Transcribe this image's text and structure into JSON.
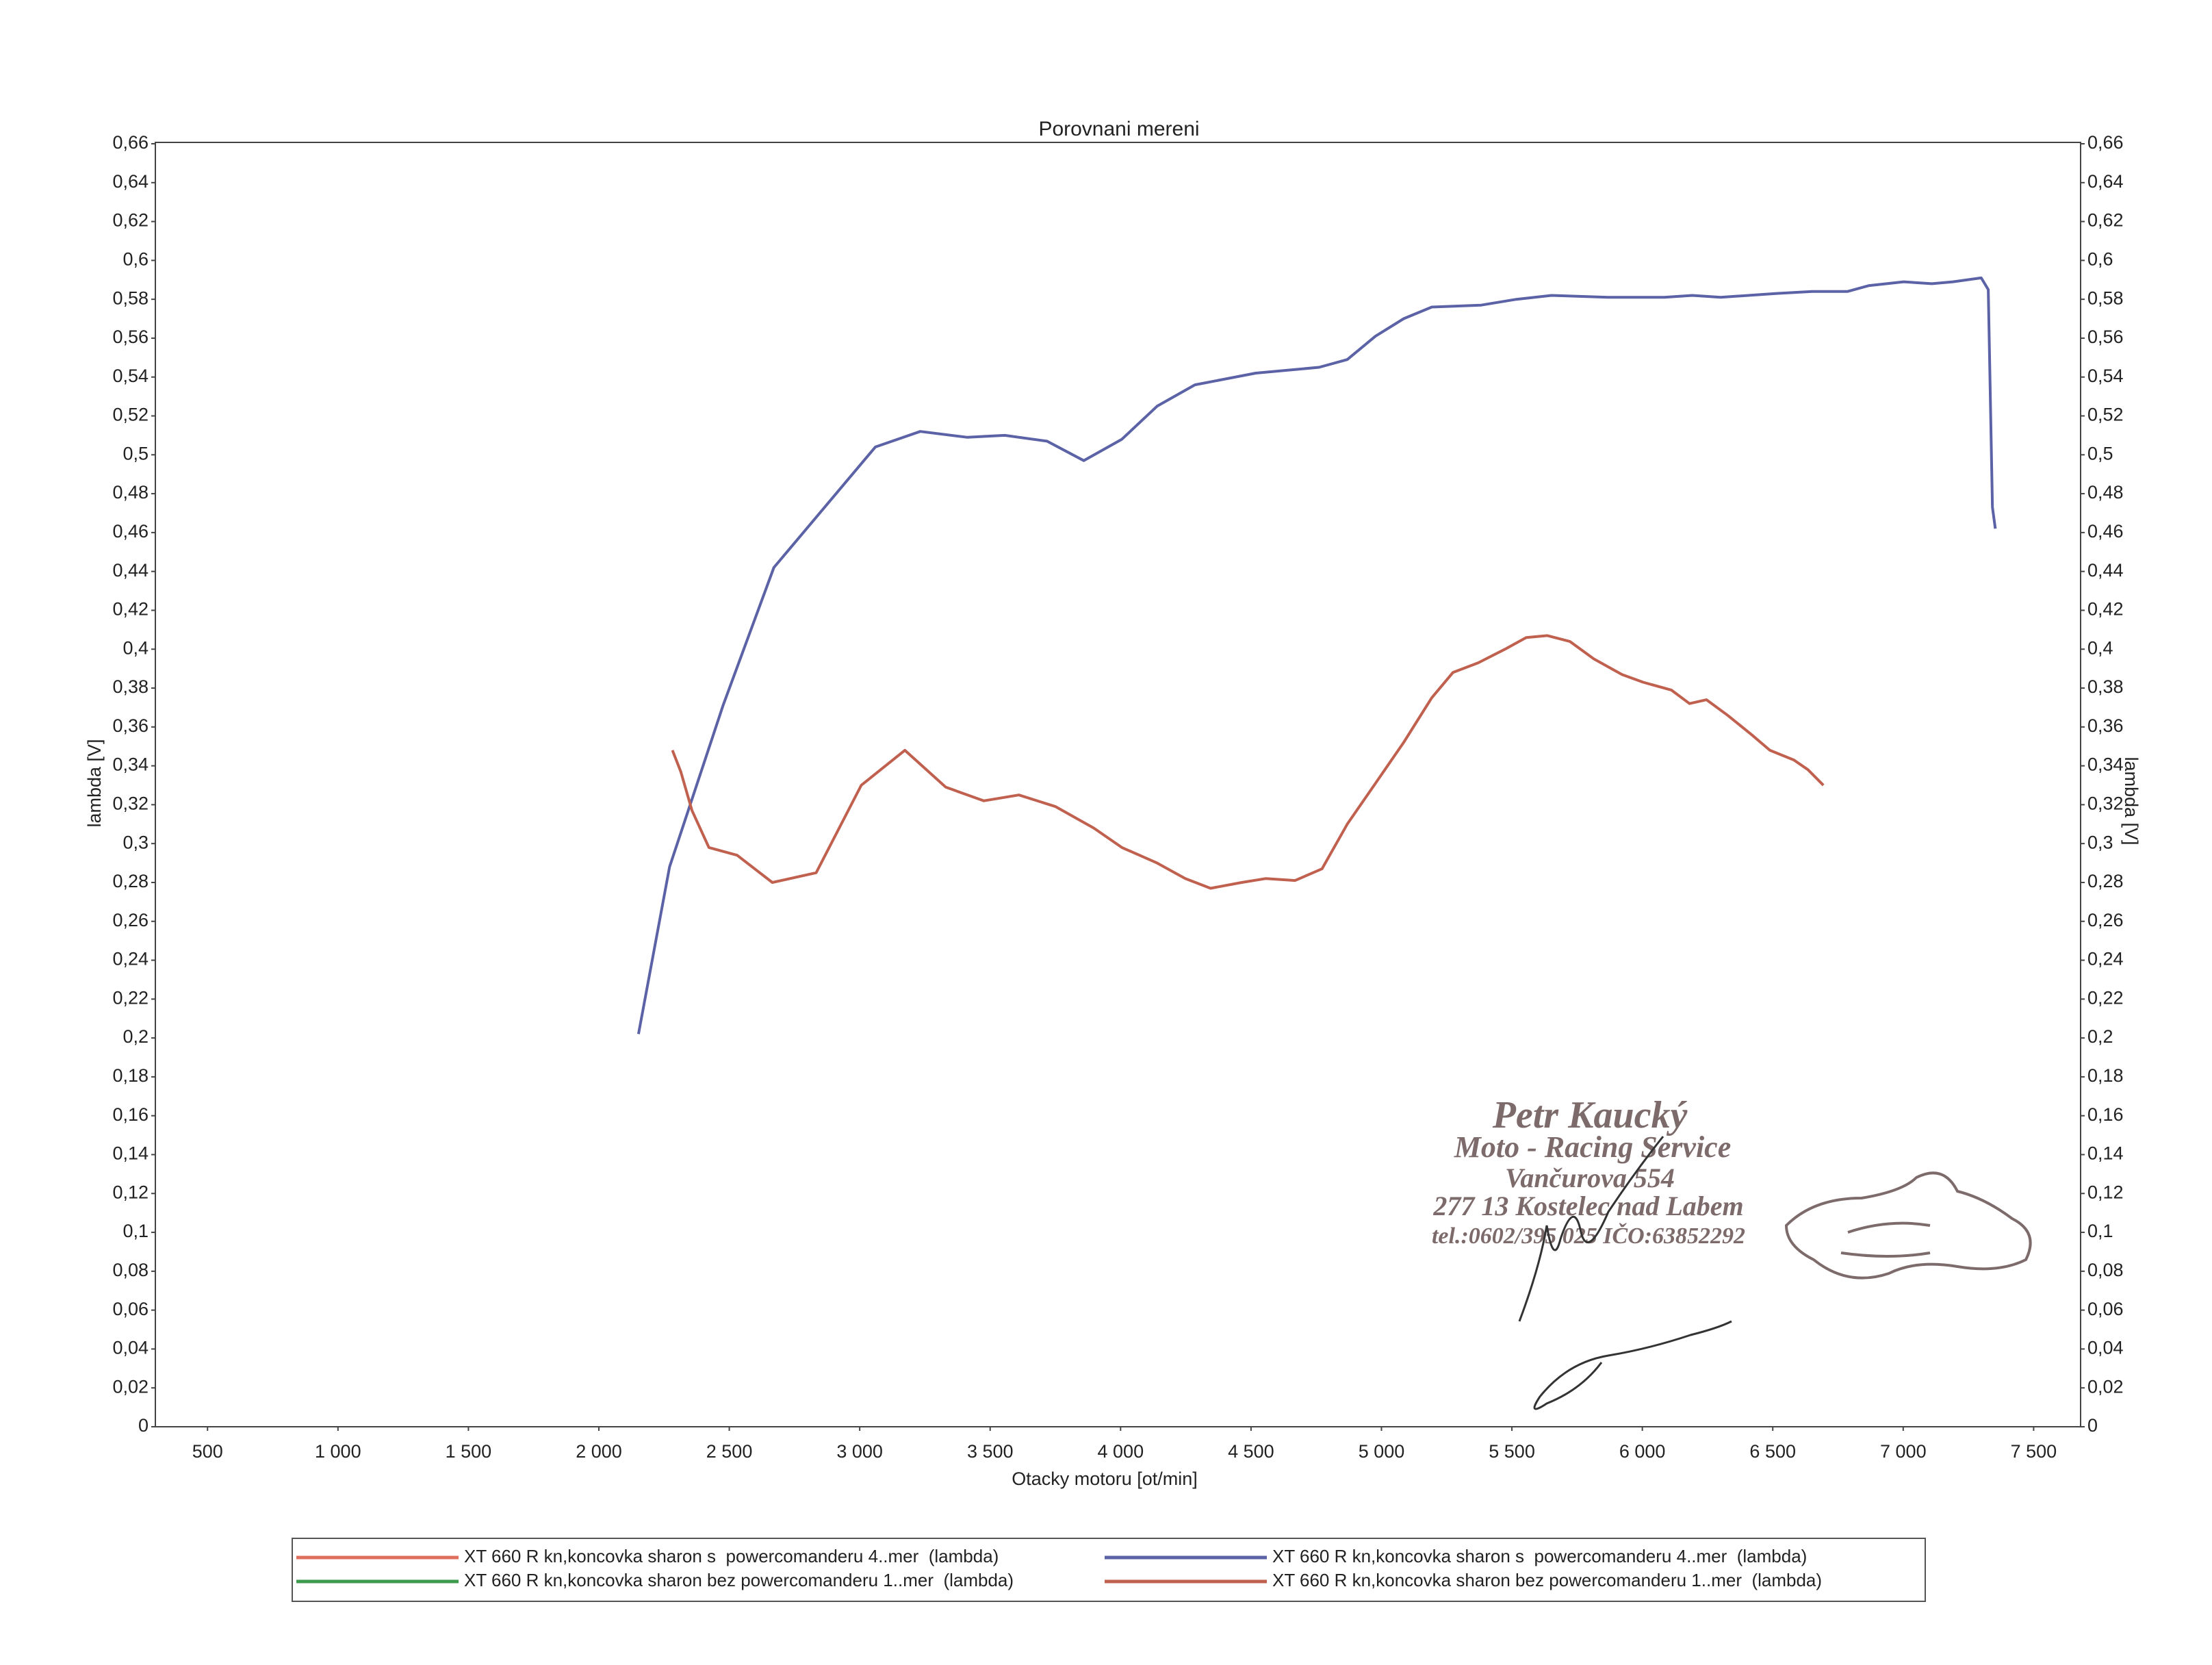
{
  "chart_data": {
    "type": "line",
    "title": "Porovnani mereni",
    "xlabel": "Otacky motoru [ot/min]",
    "ylabel": "lambda [V]",
    "y2label": "lambda [V]",
    "xlim": [
      300,
      7680
    ],
    "ylim": [
      0,
      0.66
    ],
    "y2lim": [
      0,
      0.66
    ],
    "grid": false,
    "legend": "bottom",
    "xticks": [
      500,
      {
        "value": 1000,
        "label": "1 000"
      },
      {
        "value": 1500,
        "label": "1 500"
      },
      {
        "value": 2000,
        "label": "2 000"
      },
      {
        "value": 2500,
        "label": "2 500"
      },
      {
        "value": 3000,
        "label": "3 000"
      },
      {
        "value": 3500,
        "label": "3 500"
      },
      {
        "value": 4000,
        "label": "4 000"
      },
      {
        "value": 4500,
        "label": "4 500"
      },
      {
        "value": 5000,
        "label": "5 000"
      },
      {
        "value": 5500,
        "label": "5 500"
      },
      {
        "value": 6000,
        "label": "6 000"
      },
      {
        "value": 6500,
        "label": "6 500"
      },
      {
        "value": 7000,
        "label": "7 000"
      },
      {
        "value": 7500,
        "label": "7 500"
      }
    ],
    "yticks": [
      0,
      {
        "value": 0.02,
        "label": "0,02"
      },
      {
        "value": 0.04,
        "label": "0,04"
      },
      {
        "value": 0.06,
        "label": "0,06"
      },
      {
        "value": 0.08,
        "label": "0,08"
      },
      {
        "value": 0.1,
        "label": "0,1"
      },
      {
        "value": 0.12,
        "label": "0,12"
      },
      {
        "value": 0.14,
        "label": "0,14"
      },
      {
        "value": 0.16,
        "label": "0,16"
      },
      {
        "value": 0.18,
        "label": "0,18"
      },
      {
        "value": 0.2,
        "label": "0,2"
      },
      {
        "value": 0.22,
        "label": "0,22"
      },
      {
        "value": 0.24,
        "label": "0,24"
      },
      {
        "value": 0.26,
        "label": "0,26"
      },
      {
        "value": 0.28,
        "label": "0,28"
      },
      {
        "value": 0.3,
        "label": "0,3"
      },
      {
        "value": 0.32,
        "label": "0,32"
      },
      {
        "value": 0.34,
        "label": "0,34"
      },
      {
        "value": 0.36,
        "label": "0,36"
      },
      {
        "value": 0.38,
        "label": "0,38"
      },
      {
        "value": 0.4,
        "label": "0,4"
      },
      {
        "value": 0.42,
        "label": "0,42"
      },
      {
        "value": 0.44,
        "label": "0,44"
      },
      {
        "value": 0.46,
        "label": "0,46"
      },
      {
        "value": 0.48,
        "label": "0,48"
      },
      {
        "value": 0.5,
        "label": "0,5"
      },
      {
        "value": 0.52,
        "label": "0,52"
      },
      {
        "value": 0.54,
        "label": "0,54"
      },
      {
        "value": 0.56,
        "label": "0,56"
      },
      {
        "value": 0.58,
        "label": "0,58"
      },
      {
        "value": 0.6,
        "label": "0,6"
      },
      {
        "value": 0.62,
        "label": "0,62"
      },
      {
        "value": 0.64,
        "label": "0,64"
      },
      {
        "value": 0.66,
        "label": "0,66"
      }
    ],
    "y2ticks": [
      0,
      {
        "value": 0.02,
        "label": "0,02"
      },
      {
        "value": 0.04,
        "label": "0,04"
      },
      {
        "value": 0.06,
        "label": "0,06"
      },
      {
        "value": 0.08,
        "label": "0,08"
      },
      {
        "value": 0.1,
        "label": "0,1"
      },
      {
        "value": 0.12,
        "label": "0,12"
      },
      {
        "value": 0.14,
        "label": "0,14"
      },
      {
        "value": 0.16,
        "label": "0,16"
      },
      {
        "value": 0.18,
        "label": "0,18"
      },
      {
        "value": 0.2,
        "label": "0,2"
      },
      {
        "value": 0.22,
        "label": "0,22"
      },
      {
        "value": 0.24,
        "label": "0,24"
      },
      {
        "value": 0.26,
        "label": "0,26"
      },
      {
        "value": 0.28,
        "label": "0,28"
      },
      {
        "value": 0.3,
        "label": "0,3"
      },
      {
        "value": 0.32,
        "label": "0,32"
      },
      {
        "value": 0.34,
        "label": "0,34"
      },
      {
        "value": 0.36,
        "label": "0,36"
      },
      {
        "value": 0.38,
        "label": "0,38"
      },
      {
        "value": 0.4,
        "label": "0,4"
      },
      {
        "value": 0.42,
        "label": "0,42"
      },
      {
        "value": 0.44,
        "label": "0,44"
      },
      {
        "value": 0.46,
        "label": "0,46"
      },
      {
        "value": 0.48,
        "label": "0,48"
      },
      {
        "value": 0.5,
        "label": "0,5"
      },
      {
        "value": 0.52,
        "label": "0,52"
      },
      {
        "value": 0.54,
        "label": "0,54"
      },
      {
        "value": 0.56,
        "label": "0,56"
      },
      {
        "value": 0.58,
        "label": "0,58"
      },
      {
        "value": 0.6,
        "label": "0,6"
      },
      {
        "value": 0.62,
        "label": "0,62"
      },
      {
        "value": 0.64,
        "label": "0,64"
      },
      {
        "value": 0.66,
        "label": "0,66"
      }
    ],
    "series": [
      {
        "name": "XT 660 R kn,koncovka sharon s  powercomanderu 4..mer  (lambda)",
        "color": "#e0705e",
        "x": [],
        "values": []
      },
      {
        "name": "XT 660 R kn,koncovka sharon bez powercomanderu 1..mer  (lambda)",
        "color": "#3c9a4c",
        "x": [],
        "values": []
      },
      {
        "name": "XT 660 R kn,koncovka sharon s  powercomanderu 4..mer  (lambda)",
        "color": "#5b62a6",
        "x": [
          2152,
          2271,
          2476,
          2671,
          3060,
          3232,
          3411,
          3556,
          3718,
          3859,
          4005,
          4140,
          4285,
          4518,
          4761,
          4869,
          4977,
          5085,
          5193,
          5382,
          5517,
          5652,
          5868,
          6084,
          6192,
          6300,
          6516,
          6651,
          6786,
          6867,
          7002,
          7110,
          7191,
          7299,
          7326,
          7342,
          7353
        ],
        "values": [
          0.202,
          0.288,
          0.371,
          0.442,
          0.504,
          0.512,
          0.509,
          0.51,
          0.507,
          0.497,
          0.508,
          0.525,
          0.536,
          0.542,
          0.545,
          0.549,
          0.561,
          0.57,
          0.576,
          0.577,
          0.58,
          0.582,
          0.581,
          0.581,
          0.582,
          0.581,
          0.583,
          0.584,
          0.584,
          0.587,
          0.589,
          0.588,
          0.589,
          0.591,
          0.585,
          0.473,
          0.462
        ]
      },
      {
        "name": "XT 660 R kn,koncovka sharon bez powercomanderu 1..mer  (lambda)",
        "color": "#c0604e",
        "x": [
          2282,
          2314,
          2357,
          2422,
          2530,
          2665,
          2833,
          3006,
          3173,
          3330,
          3476,
          3610,
          3751,
          3897,
          4005,
          4140,
          4248,
          4345,
          4464,
          4556,
          4669,
          4772,
          4869,
          4977,
          5085,
          5193,
          5274,
          5371,
          5474,
          5555,
          5636,
          5722,
          5814,
          5922,
          6003,
          6111,
          6181,
          6246,
          6327,
          6419,
          6489,
          6581,
          6635,
          6694
        ],
        "values": [
          0.348,
          0.337,
          0.317,
          0.298,
          0.294,
          0.28,
          0.285,
          0.33,
          0.348,
          0.329,
          0.322,
          0.325,
          0.319,
          0.308,
          0.298,
          0.29,
          0.282,
          0.277,
          0.28,
          0.282,
          0.281,
          0.287,
          0.31,
          0.331,
          0.352,
          0.375,
          0.388,
          0.393,
          0.4,
          0.406,
          0.407,
          0.404,
          0.395,
          0.387,
          0.383,
          0.379,
          0.372,
          0.374,
          0.366,
          0.356,
          0.348,
          0.343,
          0.338,
          0.33
        ]
      }
    ],
    "annotations": [
      "Petr Kaucký",
      "Moto - Racing Service",
      "Vančurova 554",
      "277 13 Kostelec nad Labem",
      "tel.:0602/395 025 IČO:63852292"
    ]
  }
}
